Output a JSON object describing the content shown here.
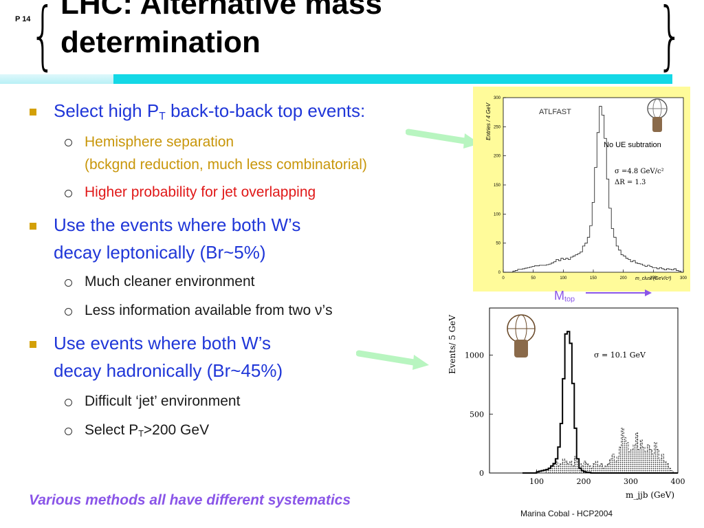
{
  "slide": {
    "page_number": "P 14",
    "title_line1": "LHC: Alternative mass",
    "title_line2": "determination"
  },
  "bullets": [
    {
      "text_pre": "Select high P",
      "sub": "T",
      "text_post": " back-to-back top events:"
    },
    {
      "line1": "Use the events where both W’s",
      "line2": "decay leptonically (Br~5%)"
    },
    {
      "line1": "Use events where both W’s",
      "line2": "decay hadronically (Br~45%)"
    }
  ],
  "subbullets": {
    "b1_s1_line1": "Hemisphere separation",
    "b1_s1_line2": "(bckgnd reduction, much less combinatorial)",
    "b1_s2": "Higher probability for jet overlapping",
    "b2_s1": "Much cleaner environment",
    "b2_s2": "Less information available from two ν’s",
    "b3_s1": "Difficult ‘jet’ environment",
    "b3_s2_pre": "Select P",
    "b3_s2_sub": "T",
    "b3_s2_post": ">200 GeV"
  },
  "footer": {
    "summary": "Various methods all have different systematics",
    "author": "Marina Cobal - HCP2004"
  },
  "mtop_label": {
    "text": "M",
    "sub": "top"
  },
  "colors": {
    "bullet_primary": "#1f36d8",
    "sub_gold": "#c8960a",
    "sub_red": "#e01818",
    "footer_purple": "#8a55e8",
    "plot1_bg": "#fffb9a",
    "cyan_bar": "#14d8e6",
    "arrow_green": "#b8f5c0"
  },
  "chart_data": [
    {
      "type": "line",
      "title": "ATLFAST",
      "xlabel": "m_clust (GeV/c²)",
      "ylabel": "Entries / 4 GeV",
      "xlim": [
        0,
        300
      ],
      "ylim": [
        0,
        300
      ],
      "x_ticks": [
        0,
        50,
        100,
        150,
        200,
        250,
        300
      ],
      "y_ticks": [
        0,
        50,
        100,
        150,
        200,
        250,
        300
      ],
      "annotations": [
        "No UE subtration",
        "σ =4.8 GeV/c²",
        "ΔR = 1.3"
      ],
      "x": [
        0,
        4,
        8,
        12,
        16,
        20,
        24,
        28,
        32,
        36,
        40,
        44,
        48,
        52,
        56,
        60,
        64,
        68,
        72,
        76,
        80,
        84,
        88,
        92,
        96,
        100,
        104,
        108,
        112,
        116,
        120,
        124,
        128,
        132,
        136,
        140,
        144,
        148,
        152,
        156,
        160,
        164,
        168,
        172,
        176,
        180,
        184,
        188,
        192,
        196,
        200,
        204,
        208,
        212,
        216,
        220,
        224,
        228,
        232,
        236,
        240,
        244,
        248,
        252,
        256,
        260,
        264,
        268,
        272,
        276,
        280,
        284,
        288,
        292,
        296
      ],
      "values": [
        0,
        0,
        0,
        0,
        2,
        3,
        5,
        5,
        6,
        7,
        8,
        9,
        10,
        11,
        11,
        12,
        12,
        12,
        13,
        14,
        16,
        18,
        22,
        20,
        24,
        22,
        24,
        22,
        26,
        28,
        30,
        32,
        35,
        45,
        50,
        60,
        80,
        120,
        180,
        240,
        285,
        270,
        230,
        160,
        110,
        75,
        60,
        45,
        38,
        30,
        28,
        24,
        22,
        18,
        20,
        16,
        15,
        14,
        12,
        10,
        12,
        10,
        8,
        8,
        6,
        8,
        6,
        4,
        6,
        5,
        4,
        6,
        3,
        2,
        0
      ]
    },
    {
      "type": "line",
      "xlabel": "m_jjb (GeV)",
      "ylabel": "Events/ 5 GeV",
      "xlim": [
        0,
        400
      ],
      "ylim": [
        0,
        1400
      ],
      "x_ticks": [
        100,
        200,
        300,
        400
      ],
      "y_ticks": [
        0,
        500,
        1000
      ],
      "annotations": [
        "σ = 10.1 GeV"
      ],
      "series": [
        {
          "values_x": [
            70,
            75,
            80,
            85,
            90,
            95,
            100,
            105,
            110,
            115,
            120,
            125,
            130,
            135,
            140,
            145,
            150,
            155,
            160,
            165,
            170,
            175,
            180,
            185,
            190,
            195,
            200,
            205,
            210,
            215,
            220,
            225,
            230,
            235,
            240,
            245,
            250,
            255,
            260,
            265,
            270,
            275,
            280,
            285,
            290,
            295,
            300,
            305,
            310,
            315,
            320,
            325,
            330,
            335,
            340,
            345,
            350,
            355,
            360,
            365,
            370,
            375,
            380,
            385,
            390,
            395
          ],
          "values": [
            0,
            0,
            0,
            0,
            0,
            0,
            10,
            15,
            20,
            25,
            30,
            40,
            60,
            80,
            120,
            220,
            420,
            800,
            1180,
            1200,
            1100,
            760,
            380,
            120,
            40,
            20,
            10,
            5,
            5,
            0,
            0,
            0,
            0,
            0,
            0,
            0,
            0,
            0,
            0,
            0,
            0,
            0,
            0,
            0,
            0,
            0,
            0,
            0,
            0,
            0,
            0,
            0,
            0,
            0,
            0,
            0,
            0,
            0,
            0,
            0,
            0,
            0,
            0,
            0,
            0,
            0
          ]
        },
        {
          "values_x": [
            70,
            75,
            80,
            85,
            90,
            95,
            100,
            105,
            110,
            115,
            120,
            125,
            130,
            135,
            140,
            145,
            150,
            155,
            160,
            165,
            170,
            175,
            180,
            185,
            190,
            195,
            200,
            205,
            210,
            215,
            220,
            225,
            230,
            235,
            240,
            245,
            250,
            255,
            260,
            265,
            270,
            275,
            280,
            285,
            290,
            295,
            300,
            305,
            310,
            315,
            320,
            325,
            330,
            335,
            340,
            345,
            350,
            355,
            360,
            365,
            370,
            375,
            380,
            385,
            390,
            395
          ],
          "values": [
            0,
            0,
            0,
            0,
            0,
            0,
            0,
            0,
            0,
            0,
            20,
            40,
            60,
            80,
            100,
            60,
            80,
            120,
            100,
            80,
            100,
            60,
            140,
            100,
            80,
            60,
            100,
            80,
            60,
            40,
            80,
            100,
            60,
            80,
            40,
            60,
            80,
            120,
            160,
            100,
            140,
            220,
            380,
            300,
            260,
            180,
            200,
            240,
            340,
            200,
            280,
            220,
            180,
            240,
            200,
            160,
            260,
            200,
            120,
            160,
            100,
            80,
            40,
            20,
            0,
            0
          ]
        }
      ]
    }
  ]
}
